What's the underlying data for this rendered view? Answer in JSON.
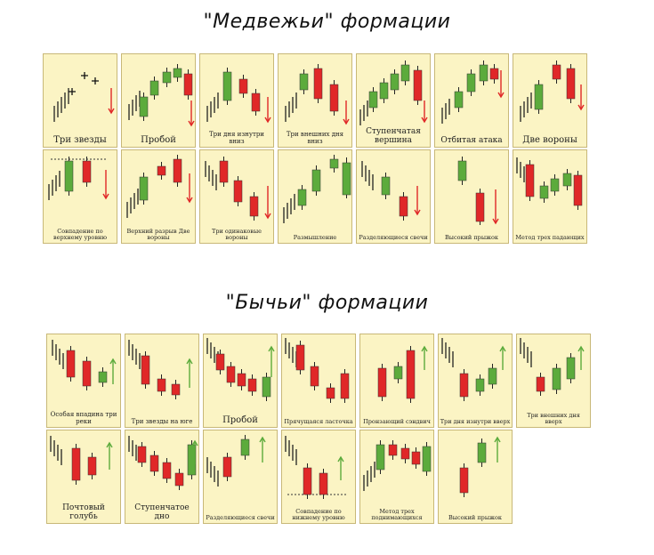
{
  "bearish": {
    "title": "\"Медвежьи\" формации",
    "patterns": [
      {
        "label": "Три звезды",
        "size": 10
      },
      {
        "label": "Пробой",
        "size": 10
      },
      {
        "label": "Три дня изнутри вниз",
        "size": 7
      },
      {
        "label": "Три внешних дня вниз",
        "size": 7
      },
      {
        "label": "Ступенчатая вершина",
        "size": 9
      },
      {
        "label": "Отбитая атака",
        "size": 9
      },
      {
        "label": "Две вороны",
        "size": 10
      },
      {
        "label": "Совпадение по верхнему уровню",
        "size": 6.5
      },
      {
        "label": "Верхний разрыв Две вороны",
        "size": 6.5
      },
      {
        "label": "Три одинаковые вороны",
        "size": 6.5
      },
      {
        "label": "Размышление",
        "size": 6.5
      },
      {
        "label": "Разделяющиеся свечи",
        "size": 6.5
      },
      {
        "label": "Высокий прыжок",
        "size": 6.5
      },
      {
        "label": "Метод трех падающих",
        "size": 6.5
      }
    ]
  },
  "bullish": {
    "title": "\"Бычьи\" формации",
    "patterns": [
      {
        "label": "Особая впадина три реки",
        "size": 7
      },
      {
        "label": "Три звезды на юге",
        "size": 7
      },
      {
        "label": "Пробой",
        "size": 10
      },
      {
        "label": "Прячущаяся ласточка",
        "size": 6.5
      },
      {
        "label": "Пронзающий сэндвич",
        "size": 6.5
      },
      {
        "label": "Три дня изнутри вверх",
        "size": 6.5
      },
      {
        "label": "Три внешних дня вверх",
        "size": 6.5
      },
      {
        "label": "Почтовый голубь",
        "size": 9
      },
      {
        "label": "Ступенчатое дно",
        "size": 9
      },
      {
        "label": "Разделяющиеся свечи",
        "size": 6.5
      },
      {
        "label": "Совпадение по нижнему уровню",
        "size": 6.5
      },
      {
        "label": "Метод трех поднимающихся",
        "size": 6.5
      },
      {
        "label": "Высокий прыжок",
        "size": 6.5
      }
    ]
  },
  "colors": {
    "panel": "#fbf4c4",
    "border": "#c8b878",
    "up": "#5cab3c",
    "down": "#e02828",
    "wick": "#222222"
  }
}
